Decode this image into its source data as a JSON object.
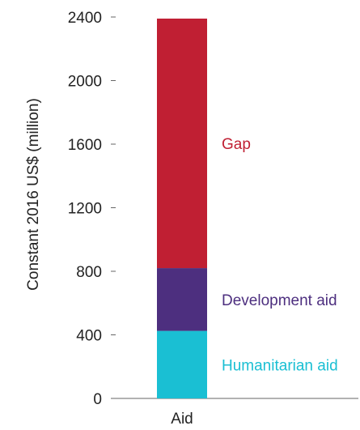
{
  "chart_data": {
    "type": "bar",
    "stacked": true,
    "categories": [
      "Aid"
    ],
    "series": [
      {
        "name": "Humanitarian aid",
        "values": [
          425
        ],
        "color": "#1abfd3"
      },
      {
        "name": "Development aid",
        "values": [
          395
        ],
        "color": "#4d2f7f"
      },
      {
        "name": "Gap",
        "values": [
          1570
        ],
        "color": "#c01f33"
      }
    ],
    "ylabel": "Constant 2016 US$ (million)",
    "xlabel": "",
    "ylim": [
      0,
      2400
    ],
    "yticks": [
      0,
      400,
      800,
      1200,
      1600,
      2000,
      2400
    ],
    "grid": false,
    "legend": "direct labels right of bar"
  }
}
